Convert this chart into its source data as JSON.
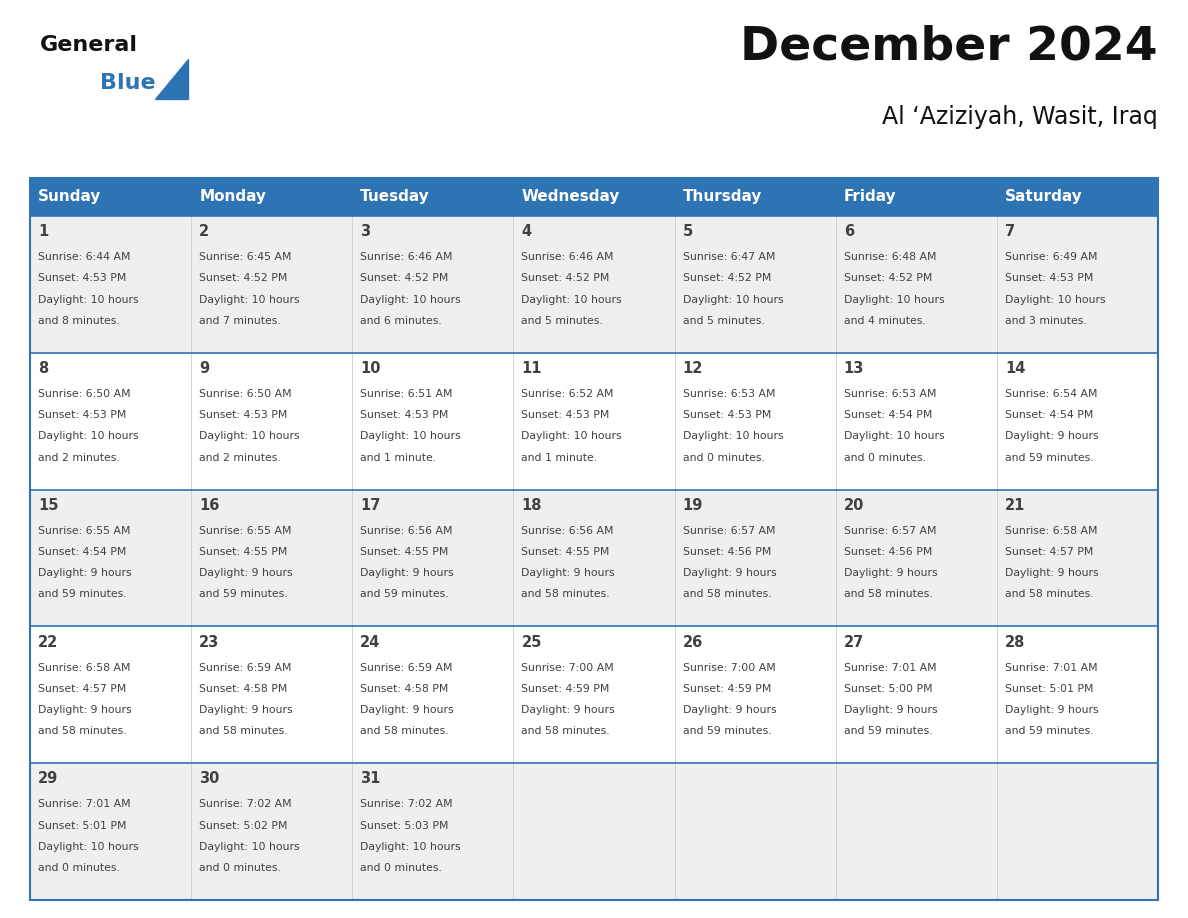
{
  "title": "December 2024",
  "subtitle": "Al ‘Aziziyah, Wasit, Iraq",
  "header_bg": "#2E74B5",
  "header_text": "#FFFFFF",
  "day_names": [
    "Sunday",
    "Monday",
    "Tuesday",
    "Wednesday",
    "Thursday",
    "Friday",
    "Saturday"
  ],
  "row_bg_odd": "#EFEFEF",
  "row_bg_even": "#FFFFFF",
  "border_color": "#2E74B5",
  "text_color": "#404040",
  "days": [
    {
      "day": 1,
      "col": 0,
      "row": 0,
      "sunrise": "6:44 AM",
      "sunset": "4:53 PM",
      "daylight_line1": "Daylight: 10 hours",
      "daylight_line2": "and 8 minutes."
    },
    {
      "day": 2,
      "col": 1,
      "row": 0,
      "sunrise": "6:45 AM",
      "sunset": "4:52 PM",
      "daylight_line1": "Daylight: 10 hours",
      "daylight_line2": "and 7 minutes."
    },
    {
      "day": 3,
      "col": 2,
      "row": 0,
      "sunrise": "6:46 AM",
      "sunset": "4:52 PM",
      "daylight_line1": "Daylight: 10 hours",
      "daylight_line2": "and 6 minutes."
    },
    {
      "day": 4,
      "col": 3,
      "row": 0,
      "sunrise": "6:46 AM",
      "sunset": "4:52 PM",
      "daylight_line1": "Daylight: 10 hours",
      "daylight_line2": "and 5 minutes."
    },
    {
      "day": 5,
      "col": 4,
      "row": 0,
      "sunrise": "6:47 AM",
      "sunset": "4:52 PM",
      "daylight_line1": "Daylight: 10 hours",
      "daylight_line2": "and 5 minutes."
    },
    {
      "day": 6,
      "col": 5,
      "row": 0,
      "sunrise": "6:48 AM",
      "sunset": "4:52 PM",
      "daylight_line1": "Daylight: 10 hours",
      "daylight_line2": "and 4 minutes."
    },
    {
      "day": 7,
      "col": 6,
      "row": 0,
      "sunrise": "6:49 AM",
      "sunset": "4:53 PM",
      "daylight_line1": "Daylight: 10 hours",
      "daylight_line2": "and 3 minutes."
    },
    {
      "day": 8,
      "col": 0,
      "row": 1,
      "sunrise": "6:50 AM",
      "sunset": "4:53 PM",
      "daylight_line1": "Daylight: 10 hours",
      "daylight_line2": "and 2 minutes."
    },
    {
      "day": 9,
      "col": 1,
      "row": 1,
      "sunrise": "6:50 AM",
      "sunset": "4:53 PM",
      "daylight_line1": "Daylight: 10 hours",
      "daylight_line2": "and 2 minutes."
    },
    {
      "day": 10,
      "col": 2,
      "row": 1,
      "sunrise": "6:51 AM",
      "sunset": "4:53 PM",
      "daylight_line1": "Daylight: 10 hours",
      "daylight_line2": "and 1 minute."
    },
    {
      "day": 11,
      "col": 3,
      "row": 1,
      "sunrise": "6:52 AM",
      "sunset": "4:53 PM",
      "daylight_line1": "Daylight: 10 hours",
      "daylight_line2": "and 1 minute."
    },
    {
      "day": 12,
      "col": 4,
      "row": 1,
      "sunrise": "6:53 AM",
      "sunset": "4:53 PM",
      "daylight_line1": "Daylight: 10 hours",
      "daylight_line2": "and 0 minutes."
    },
    {
      "day": 13,
      "col": 5,
      "row": 1,
      "sunrise": "6:53 AM",
      "sunset": "4:54 PM",
      "daylight_line1": "Daylight: 10 hours",
      "daylight_line2": "and 0 minutes."
    },
    {
      "day": 14,
      "col": 6,
      "row": 1,
      "sunrise": "6:54 AM",
      "sunset": "4:54 PM",
      "daylight_line1": "Daylight: 9 hours",
      "daylight_line2": "and 59 minutes."
    },
    {
      "day": 15,
      "col": 0,
      "row": 2,
      "sunrise": "6:55 AM",
      "sunset": "4:54 PM",
      "daylight_line1": "Daylight: 9 hours",
      "daylight_line2": "and 59 minutes."
    },
    {
      "day": 16,
      "col": 1,
      "row": 2,
      "sunrise": "6:55 AM",
      "sunset": "4:55 PM",
      "daylight_line1": "Daylight: 9 hours",
      "daylight_line2": "and 59 minutes."
    },
    {
      "day": 17,
      "col": 2,
      "row": 2,
      "sunrise": "6:56 AM",
      "sunset": "4:55 PM",
      "daylight_line1": "Daylight: 9 hours",
      "daylight_line2": "and 59 minutes."
    },
    {
      "day": 18,
      "col": 3,
      "row": 2,
      "sunrise": "6:56 AM",
      "sunset": "4:55 PM",
      "daylight_line1": "Daylight: 9 hours",
      "daylight_line2": "and 58 minutes."
    },
    {
      "day": 19,
      "col": 4,
      "row": 2,
      "sunrise": "6:57 AM",
      "sunset": "4:56 PM",
      "daylight_line1": "Daylight: 9 hours",
      "daylight_line2": "and 58 minutes."
    },
    {
      "day": 20,
      "col": 5,
      "row": 2,
      "sunrise": "6:57 AM",
      "sunset": "4:56 PM",
      "daylight_line1": "Daylight: 9 hours",
      "daylight_line2": "and 58 minutes."
    },
    {
      "day": 21,
      "col": 6,
      "row": 2,
      "sunrise": "6:58 AM",
      "sunset": "4:57 PM",
      "daylight_line1": "Daylight: 9 hours",
      "daylight_line2": "and 58 minutes."
    },
    {
      "day": 22,
      "col": 0,
      "row": 3,
      "sunrise": "6:58 AM",
      "sunset": "4:57 PM",
      "daylight_line1": "Daylight: 9 hours",
      "daylight_line2": "and 58 minutes."
    },
    {
      "day": 23,
      "col": 1,
      "row": 3,
      "sunrise": "6:59 AM",
      "sunset": "4:58 PM",
      "daylight_line1": "Daylight: 9 hours",
      "daylight_line2": "and 58 minutes."
    },
    {
      "day": 24,
      "col": 2,
      "row": 3,
      "sunrise": "6:59 AM",
      "sunset": "4:58 PM",
      "daylight_line1": "Daylight: 9 hours",
      "daylight_line2": "and 58 minutes."
    },
    {
      "day": 25,
      "col": 3,
      "row": 3,
      "sunrise": "7:00 AM",
      "sunset": "4:59 PM",
      "daylight_line1": "Daylight: 9 hours",
      "daylight_line2": "and 58 minutes."
    },
    {
      "day": 26,
      "col": 4,
      "row": 3,
      "sunrise": "7:00 AM",
      "sunset": "4:59 PM",
      "daylight_line1": "Daylight: 9 hours",
      "daylight_line2": "and 59 minutes."
    },
    {
      "day": 27,
      "col": 5,
      "row": 3,
      "sunrise": "7:01 AM",
      "sunset": "5:00 PM",
      "daylight_line1": "Daylight: 9 hours",
      "daylight_line2": "and 59 minutes."
    },
    {
      "day": 28,
      "col": 6,
      "row": 3,
      "sunrise": "7:01 AM",
      "sunset": "5:01 PM",
      "daylight_line1": "Daylight: 9 hours",
      "daylight_line2": "and 59 minutes."
    },
    {
      "day": 29,
      "col": 0,
      "row": 4,
      "sunrise": "7:01 AM",
      "sunset": "5:01 PM",
      "daylight_line1": "Daylight: 10 hours",
      "daylight_line2": "and 0 minutes."
    },
    {
      "day": 30,
      "col": 1,
      "row": 4,
      "sunrise": "7:02 AM",
      "sunset": "5:02 PM",
      "daylight_line1": "Daylight: 10 hours",
      "daylight_line2": "and 0 minutes."
    },
    {
      "day": 31,
      "col": 2,
      "row": 4,
      "sunrise": "7:02 AM",
      "sunset": "5:03 PM",
      "daylight_line1": "Daylight: 10 hours",
      "daylight_line2": "and 0 minutes."
    }
  ]
}
